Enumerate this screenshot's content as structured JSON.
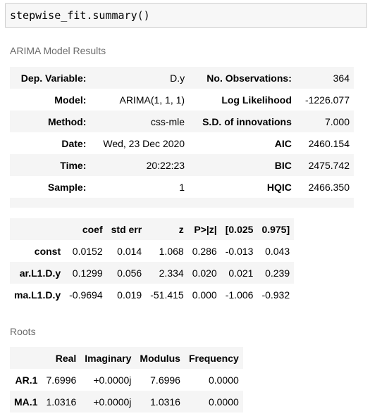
{
  "code": "stepwise_fit.summary()",
  "summary": {
    "caption": "ARIMA Model Results",
    "rows": [
      {
        "k1": "Dep. Variable:",
        "v1": "D.y",
        "k2": "No. Observations:",
        "v2": "364"
      },
      {
        "k1": "Model:",
        "v1": "ARIMA(1, 1, 1)",
        "k2": "Log Likelihood",
        "v2": "-1226.077"
      },
      {
        "k1": "Method:",
        "v1": "css-mle",
        "k2": "S.D. of innovations",
        "v2": "7.000"
      },
      {
        "k1": "Date:",
        "v1": "Wed, 23 Dec 2020",
        "k2": "AIC",
        "v2": "2460.154"
      },
      {
        "k1": "Time:",
        "v1": "20:22:23",
        "k2": "BIC",
        "v2": "2475.742"
      },
      {
        "k1": "Sample:",
        "v1": "1",
        "k2": "HQIC",
        "v2": "2466.350"
      }
    ]
  },
  "coef": {
    "headers": [
      "",
      "coef",
      "std err",
      "z",
      "P>|z|",
      "[0.025",
      "0.975]"
    ],
    "rows": [
      [
        "const",
        "0.0152",
        "0.014",
        "1.068",
        "0.286",
        "-0.013",
        "0.043"
      ],
      [
        "ar.L1.D.y",
        "0.1299",
        "0.056",
        "2.334",
        "0.020",
        "0.021",
        "0.239"
      ],
      [
        "ma.L1.D.y",
        "-0.9694",
        "0.019",
        "-51.415",
        "0.000",
        "-1.006",
        "-0.932"
      ]
    ]
  },
  "roots": {
    "caption": "Roots",
    "headers": [
      "",
      "Real",
      "Imaginary",
      "Modulus",
      "Frequency"
    ],
    "rows": [
      [
        "AR.1",
        "7.6996",
        "+0.0000j",
        "7.6996",
        "0.0000"
      ],
      [
        "MA.1",
        "1.0316",
        "+0.0000j",
        "1.0316",
        "0.0000"
      ]
    ]
  }
}
